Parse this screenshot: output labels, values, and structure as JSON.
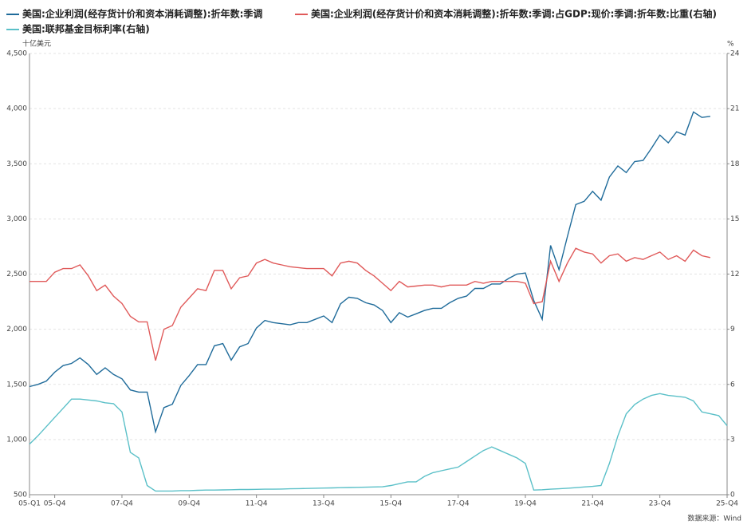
{
  "chart_data": {
    "type": "line",
    "y_unit": "十亿美元",
    "y2_unit": "%",
    "source": "数据来源：Wind",
    "categories": [
      "05-Q1",
      null,
      null,
      "05-Q4",
      null,
      null,
      null,
      null,
      null,
      null,
      null,
      "07-Q4",
      null,
      null,
      null,
      null,
      null,
      null,
      null,
      "09-Q4",
      null,
      null,
      null,
      null,
      null,
      null,
      null,
      "11-Q4",
      null,
      null,
      null,
      null,
      null,
      null,
      null,
      "13-Q4",
      null,
      null,
      null,
      null,
      null,
      null,
      null,
      "15-Q4",
      null,
      null,
      null,
      null,
      null,
      null,
      null,
      "17-Q4",
      null,
      null,
      null,
      null,
      null,
      null,
      null,
      "19-Q4",
      null,
      null,
      null,
      null,
      null,
      null,
      null,
      "21-Q4",
      null,
      null,
      null,
      null,
      null,
      null,
      null,
      "23-Q4",
      null,
      null,
      null,
      null,
      null,
      null,
      null,
      "25-Q4"
    ],
    "series": [
      {
        "name": "美国:企业利润(经存货计价和资本消耗调整):折年数:季调",
        "color": "#1f6b9a",
        "values": [
          1480,
          1500,
          1530,
          1610,
          1670,
          1690,
          1740,
          1680,
          1590,
          1650,
          1590,
          1550,
          1450,
          1430,
          1430,
          1070,
          1290,
          1320,
          1490,
          1580,
          1680,
          1680,
          1850,
          1870,
          1720,
          1840,
          1870,
          2010,
          2080,
          2060,
          2050,
          2040,
          2060,
          2060,
          2090,
          2120,
          2060,
          2230,
          2290,
          2280,
          2240,
          2220,
          2170,
          2060,
          2150,
          2110,
          2140,
          2170,
          2190,
          2190,
          2240,
          2280,
          2300,
          2370,
          2370,
          2410,
          2410,
          2460,
          2500,
          2510,
          2260,
          2090,
          2760,
          2540,
          2840,
          3130,
          3160,
          3250,
          3170,
          3380,
          3480,
          3420,
          3520,
          3530,
          3640,
          3760,
          3690,
          3790,
          3760,
          3970,
          3920,
          3930,
          null,
          null
        ]
      },
      {
        "name": "美国:企业利润(经存货计价和资本消耗调整):折年数:季调:占GDP:现价:季调:折年数:比重(右轴)",
        "color": "#e05a5a",
        "axis": "y2",
        "values": [
          11.6,
          11.6,
          11.6,
          12.1,
          12.3,
          12.3,
          12.5,
          11.9,
          11.1,
          11.4,
          10.8,
          10.4,
          9.7,
          9.4,
          9.4,
          7.3,
          9.0,
          9.2,
          10.2,
          10.7,
          11.2,
          11.1,
          12.2,
          12.2,
          11.2,
          11.8,
          11.9,
          12.6,
          12.8,
          12.6,
          12.5,
          12.4,
          12.35,
          12.3,
          12.3,
          12.3,
          11.9,
          12.6,
          12.7,
          12.6,
          12.2,
          11.9,
          11.5,
          11.1,
          11.6,
          11.3,
          11.35,
          11.4,
          11.4,
          11.3,
          11.4,
          11.4,
          11.4,
          11.6,
          11.5,
          11.6,
          11.6,
          11.6,
          11.6,
          11.5,
          10.4,
          10.5,
          12.7,
          11.6,
          12.6,
          13.4,
          13.2,
          13.1,
          12.6,
          13.0,
          13.1,
          12.7,
          12.9,
          12.8,
          13.0,
          13.2,
          12.8,
          13.0,
          12.7,
          13.3,
          13.0,
          12.9,
          null,
          null
        ]
      },
      {
        "name": "美国:联邦基金目标利率(右轴)",
        "color": "#5bc0c8",
        "axis": "y2",
        "values": [
          2.75,
          3.2,
          3.7,
          4.2,
          4.7,
          5.2,
          5.2,
          5.15,
          5.1,
          5.0,
          4.95,
          4.5,
          2.3,
          2.0,
          0.5,
          0.2,
          0.2,
          0.2,
          0.22,
          0.22,
          0.24,
          0.25,
          0.25,
          0.26,
          0.27,
          0.28,
          0.28,
          0.29,
          0.3,
          0.3,
          0.31,
          0.32,
          0.33,
          0.34,
          0.35,
          0.36,
          0.37,
          0.38,
          0.39,
          0.4,
          0.41,
          0.42,
          0.43,
          0.5,
          0.6,
          0.7,
          0.7,
          1.0,
          1.2,
          1.3,
          1.4,
          1.5,
          1.8,
          2.1,
          2.4,
          2.6,
          2.4,
          2.2,
          2.0,
          1.7,
          0.25,
          0.27,
          0.3,
          0.32,
          0.35,
          0.38,
          0.42,
          0.45,
          0.5,
          1.7,
          3.2,
          4.4,
          4.9,
          5.2,
          5.4,
          5.5,
          5.4,
          5.35,
          5.3,
          5.1,
          4.5,
          4.4,
          4.3,
          3.75
        ]
      }
    ],
    "ylim": [
      500,
      4500
    ],
    "yticks": [
      500,
      {
        "value": 1000,
        "label": "1,000"
      },
      {
        "value": 1500,
        "label": "1,500"
      },
      {
        "value": 2000,
        "label": "2,000"
      },
      {
        "value": 2500,
        "label": "2,500"
      },
      {
        "value": 3000,
        "label": "3,000"
      },
      {
        "value": 3500,
        "label": "3,500"
      },
      {
        "value": 4000,
        "label": "4,000"
      },
      {
        "value": 4500,
        "label": "4,500"
      }
    ],
    "y2lim": [
      0,
      24
    ],
    "y2ticks": [
      0,
      3,
      6,
      9,
      12,
      15,
      18,
      21,
      24
    ],
    "grid": true
  }
}
